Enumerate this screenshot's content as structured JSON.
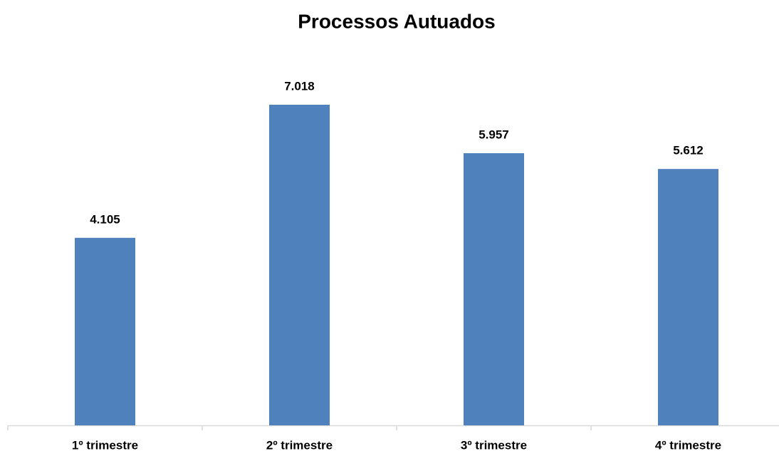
{
  "chart_data": {
    "type": "bar",
    "title": "Processos Autuados",
    "categories": [
      "1º trimestre",
      "2º trimestre",
      "3º trimestre",
      "4º trimestre"
    ],
    "values": [
      4105,
      7018,
      5957,
      5612
    ],
    "value_labels": [
      "4.105",
      "7.018",
      "5.957",
      "5.612"
    ],
    "color": "#4f81bd"
  }
}
